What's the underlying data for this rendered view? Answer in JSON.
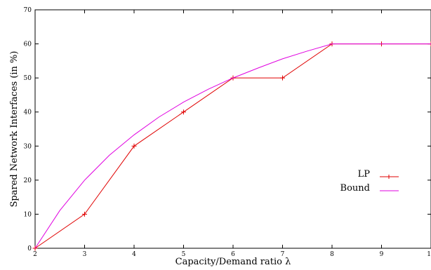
{
  "chart_data": {
    "type": "line",
    "title": "",
    "xlabel": "Capacity/Demand ratio λ",
    "ylabel": "Spared Network Interfaces (in %)",
    "xlim": [
      2,
      10
    ],
    "ylim": [
      0,
      70
    ],
    "xticks": [
      "2",
      "3",
      "4",
      "5",
      "6",
      "7",
      "8",
      "9",
      "10"
    ],
    "yticks": [
      "0",
      "10",
      "20",
      "30",
      "40",
      "50",
      "60",
      "70"
    ],
    "grid": false,
    "legend_position": "right",
    "series": [
      {
        "name": "LP",
        "color": "#e00000",
        "marker": "plus",
        "x": [
          2,
          3,
          4,
          5,
          6,
          7,
          8,
          9,
          10
        ],
        "y": [
          0,
          10,
          30,
          40,
          50,
          50,
          60,
          60,
          60
        ]
      },
      {
        "name": "Bound",
        "color": "#e000e0",
        "marker": "none",
        "x": [
          2,
          2.5,
          3,
          3.5,
          4,
          4.5,
          5,
          5.5,
          6,
          6.5,
          7,
          7.5,
          8,
          9,
          10
        ],
        "y": [
          0,
          11.1,
          20,
          27.3,
          33.3,
          38.5,
          42.9,
          46.7,
          50,
          52.9,
          55.6,
          57.9,
          60,
          60,
          60
        ]
      }
    ]
  }
}
